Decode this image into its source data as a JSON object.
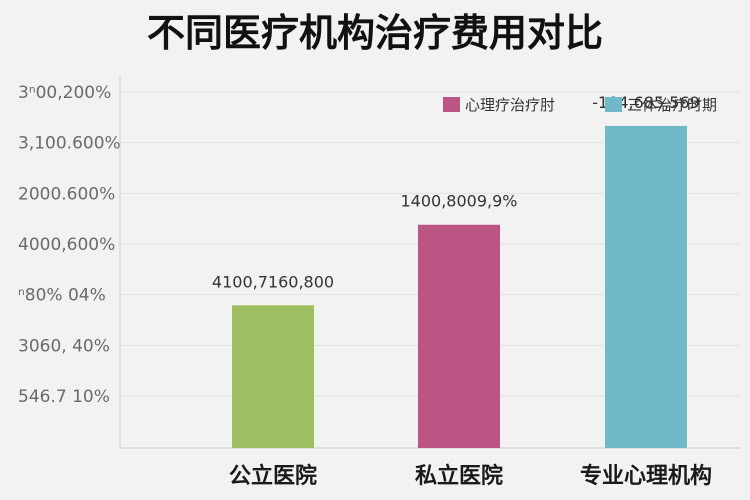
{
  "chart_data": {
    "type": "bar",
    "title": "不同医疗机构治疗费用对比",
    "xlabel": "",
    "ylabel": "",
    "categories": [
      "公立医院",
      "私立医院",
      "专业心理机构"
    ],
    "values": [
      39,
      61,
      88
    ],
    "ylim": [
      0,
      100
    ],
    "bar_colors": [
      "#9ebe62",
      "#bb5583",
      "#6fb9c8"
    ],
    "data_labels": [
      "4100,7160,800",
      "1400,8009,9%",
      "-104,685,569"
    ],
    "y_tick_labels": [
      "3ⁿ00,200%",
      "3,100.600%",
      "2000.600%",
      "4000,600%",
      "ⁿ80% 04%",
      "3060, 40%",
      "546.7 10%"
    ],
    "legend": {
      "position": "top-right",
      "entries": [
        {
          "label": "心理疗治疗肘",
          "color": "#bb5583"
        },
        {
          "label": "三体治疗时期",
          "color": "#6fb9c8"
        }
      ]
    },
    "grid": true
  }
}
